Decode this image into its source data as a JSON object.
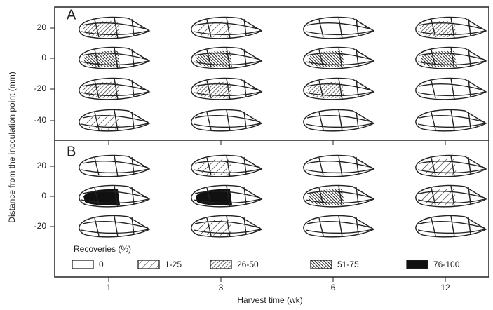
{
  "y_axis_label": "Distance from the inoculation point (mm)",
  "x_axis_label": "Harvest time (wk)",
  "x_ticks": [
    "1",
    "3",
    "6",
    "12"
  ],
  "panels": [
    {
      "label": "A",
      "y_ticks": [
        "20",
        "0",
        "-20",
        "-40"
      ]
    },
    {
      "label": "B",
      "y_ticks": [
        "20",
        "0",
        "-20"
      ]
    }
  ],
  "legend": {
    "title": "Recoveries (%)",
    "items": [
      "0",
      "1-25",
      "26-50",
      "51-75",
      "76-100"
    ]
  }
}
